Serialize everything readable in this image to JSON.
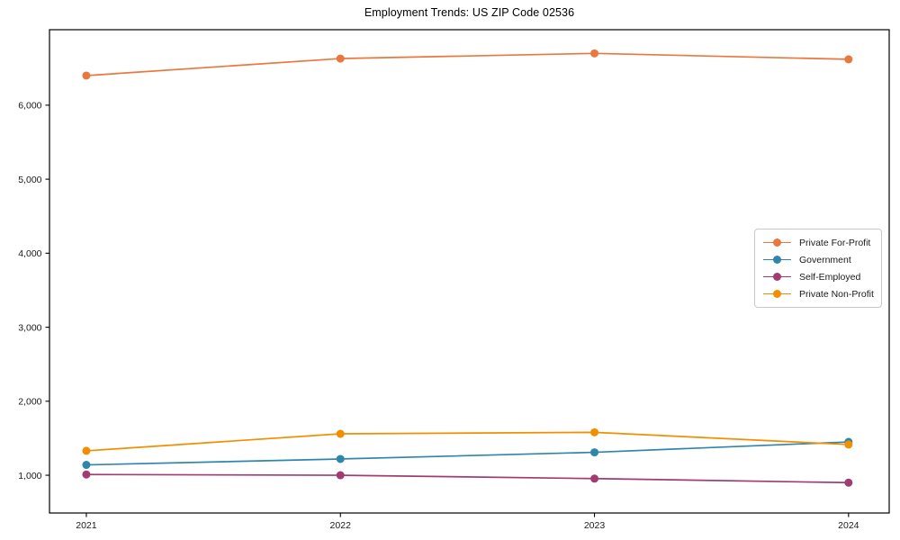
{
  "window": {
    "title": "Employment Trends: US ZIP Code 02536"
  },
  "chart_data": {
    "type": "line",
    "title": "Employment Trends: US ZIP Code 02536",
    "xlabel": "",
    "ylabel": "",
    "x": [
      2021,
      2022,
      2023,
      2024
    ],
    "x_tick_labels": [
      "2021",
      "2022",
      "2023",
      "2024"
    ],
    "y_ticks": [
      1000,
      2000,
      3000,
      4000,
      5000,
      6000
    ],
    "y_tick_labels": [
      "1,000",
      "2,000",
      "3,000",
      "4,000",
      "5,000",
      "6,000"
    ],
    "xlim": [
      2020.855,
      2024.16
    ],
    "ylim": [
      490,
      7020
    ],
    "grid": false,
    "legend_position": "center-right",
    "marker": "circle",
    "marker_size": 4.5,
    "line_width": 1.7,
    "series": [
      {
        "name": "Private For-Profit",
        "color": "#E8783E",
        "values": [
          6400,
          6630,
          6700,
          6620
        ]
      },
      {
        "name": "Government",
        "color": "#2E86AB",
        "values": [
          1140,
          1220,
          1310,
          1450
        ]
      },
      {
        "name": "Self-Employed",
        "color": "#A23B72",
        "values": [
          1010,
          1000,
          955,
          900
        ]
      },
      {
        "name": "Private Non-Profit",
        "color": "#F18F01",
        "values": [
          1330,
          1560,
          1580,
          1415
        ]
      }
    ]
  },
  "colors": {
    "background": "#ffffff",
    "axis": "#000000",
    "tick_label": "#1a1a1a",
    "legend_border": "#c9c9c9"
  }
}
